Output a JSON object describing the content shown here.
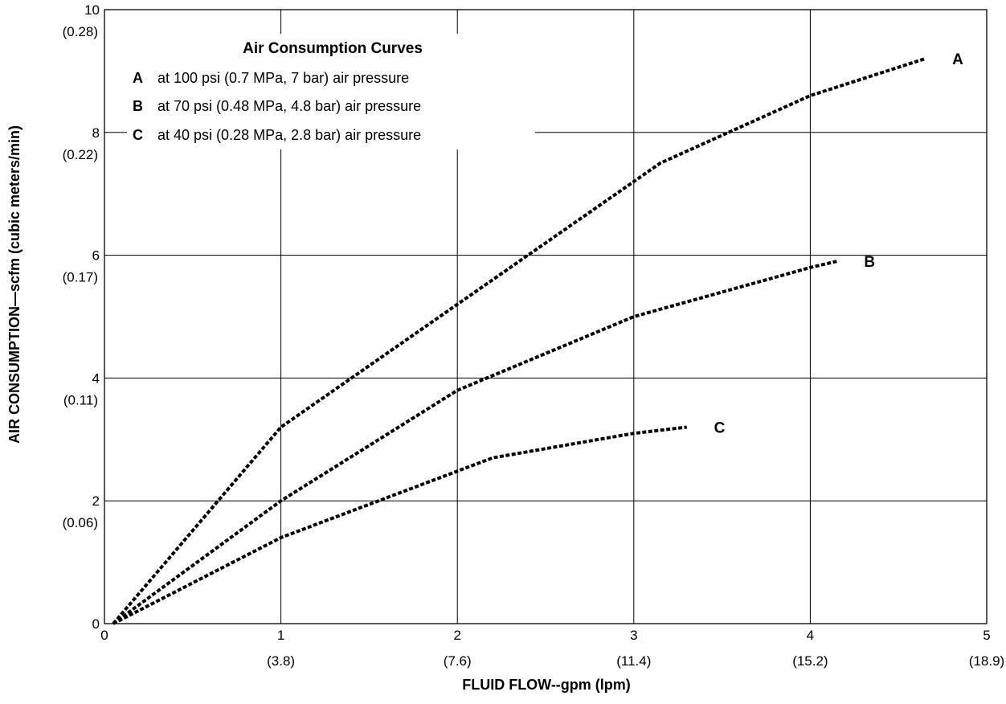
{
  "chart_data": {
    "type": "line",
    "title": "",
    "xlabel": "FLUID FLOW--gpm (lpm)",
    "ylabel": "AIR CONSUMPTION—scfm (cubic meters/min)",
    "xlim": [
      0,
      5
    ],
    "ylim": [
      0,
      10
    ],
    "grid": true,
    "x_ticks": [
      {
        "value": 0,
        "label": "0",
        "sub": ""
      },
      {
        "value": 1,
        "label": "1",
        "sub": "(3.8)"
      },
      {
        "value": 2,
        "label": "2",
        "sub": "(7.6)"
      },
      {
        "value": 3,
        "label": "3",
        "sub": "(11.4)"
      },
      {
        "value": 4,
        "label": "4",
        "sub": "(15.2)"
      },
      {
        "value": 5,
        "label": "5",
        "sub": "(18.9)"
      }
    ],
    "y_ticks": [
      {
        "value": 0,
        "label": "0",
        "sub": ""
      },
      {
        "value": 2,
        "label": "2",
        "sub": "(0.06)"
      },
      {
        "value": 4,
        "label": "4",
        "sub": "(0.11)"
      },
      {
        "value": 6,
        "label": "6",
        "sub": "(0.17)"
      },
      {
        "value": 8,
        "label": "8",
        "sub": "(0.22)"
      },
      {
        "value": 10,
        "label": "10",
        "sub": "(0.28)"
      }
    ],
    "legend": {
      "placement": "top-left",
      "title": "Air Consumption Curves",
      "entries": [
        {
          "key": "A",
          "text": "at 100 psi (0.7 MPa, 7 bar) air pressure"
        },
        {
          "key": "B",
          "text": "at 70 psi (0.48 MPa, 4.8 bar) air pressure"
        },
        {
          "key": "C",
          "text": "at 40 psi (0.28 MPa, 2.8 bar) air pressure"
        }
      ]
    },
    "series": [
      {
        "name": "A",
        "x": [
          0.05,
          1.0,
          2.0,
          3.0,
          3.15,
          4.0,
          4.65
        ],
        "y": [
          0.0,
          3.2,
          5.2,
          7.2,
          7.5,
          8.6,
          9.2
        ]
      },
      {
        "name": "B",
        "x": [
          0.05,
          1.0,
          2.0,
          3.0,
          4.0,
          4.15
        ],
        "y": [
          0.0,
          2.0,
          3.8,
          5.0,
          5.8,
          5.9
        ]
      },
      {
        "name": "C",
        "x": [
          0.05,
          1.0,
          2.2,
          3.0,
          3.3
        ],
        "y": [
          0.0,
          1.4,
          2.7,
          3.1,
          3.2
        ]
      }
    ]
  }
}
